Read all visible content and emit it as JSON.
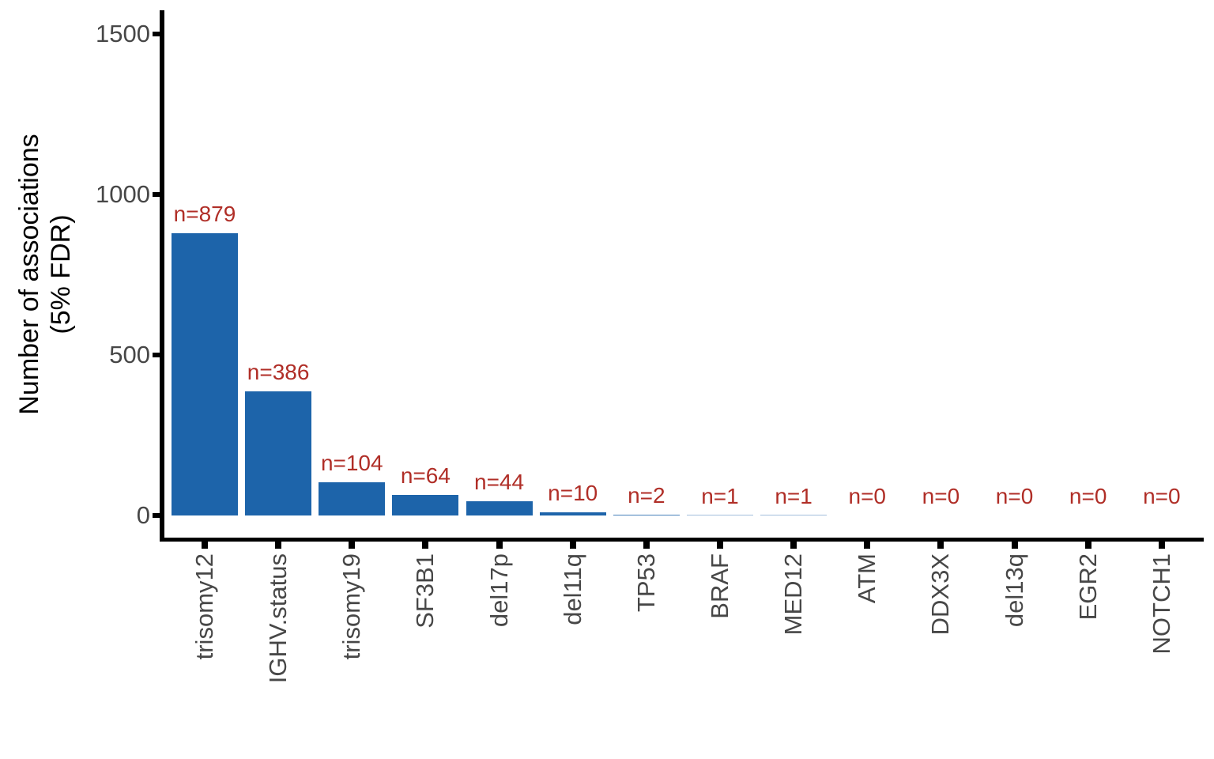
{
  "chart_data": {
    "type": "bar",
    "title": "",
    "ylabel_line1": "Number of associations",
    "ylabel_line2": "(5% FDR)",
    "xlabel": "",
    "categories": [
      "trisomy12",
      "IGHV.status",
      "trisomy19",
      "SF3B1",
      "del17p",
      "del11q",
      "TP53",
      "BRAF",
      "MED12",
      "ATM",
      "DDX3X",
      "del13q",
      "EGR2",
      "NOTCH1"
    ],
    "values": [
      879,
      386,
      104,
      64,
      44,
      10,
      2,
      1,
      1,
      0,
      0,
      0,
      0,
      0
    ],
    "bar_labels": [
      "n=879",
      "n=386",
      "n=104",
      "n=64",
      "n=44",
      "n=10",
      "n=2",
      "n=1",
      "n=1",
      "n=0",
      "n=0",
      "n=0",
      "n=0",
      "n=0"
    ],
    "y_ticks": [
      "0",
      "500",
      "1000",
      "1500"
    ],
    "y_tick_values": [
      0,
      500,
      1000,
      1500
    ],
    "ylim": [
      0,
      1575
    ],
    "grid": false,
    "legend": false,
    "colors": {
      "bar": "#1d64aa",
      "bar_label": "#b02e27",
      "tick_label": "#474747",
      "axis": "#000000",
      "background": "#ffffff"
    }
  }
}
